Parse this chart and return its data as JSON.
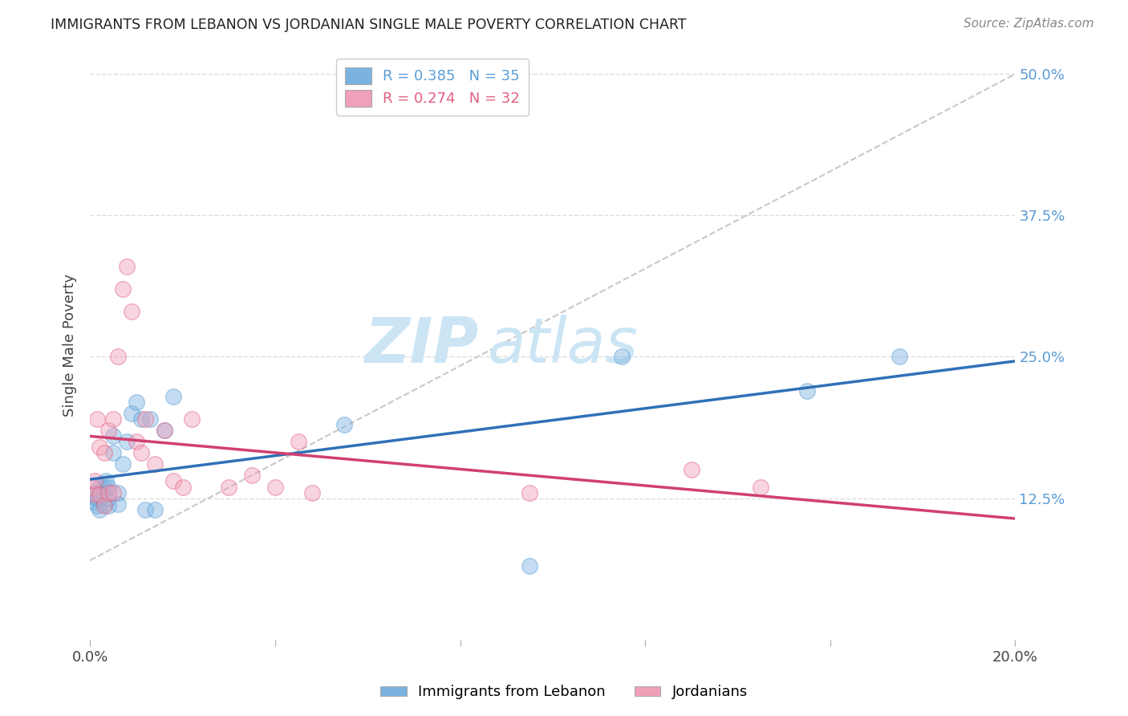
{
  "title": "IMMIGRANTS FROM LEBANON VS JORDANIAN SINGLE MALE POVERTY CORRELATION CHART",
  "source": "Source: ZipAtlas.com",
  "ylabel": "Single Male Poverty",
  "ytick_labels": [
    "12.5%",
    "25.0%",
    "37.5%",
    "50.0%"
  ],
  "ytick_values": [
    0.125,
    0.25,
    0.375,
    0.5
  ],
  "xlim": [
    0.0,
    0.2
  ],
  "ylim": [
    0.0,
    0.52
  ],
  "legend_entries": [
    {
      "label": "R = 0.385   N = 35",
      "color": "#5b9bd5"
    },
    {
      "label": "R = 0.274   N = 32",
      "color": "#e06080"
    }
  ],
  "series1_label": "Immigrants from Lebanon",
  "series1_color": "#7ab3e0",
  "series1_color_edge": "#5b9bd5",
  "series2_label": "Jordanians",
  "series2_color": "#f0a0b8",
  "series2_color_edge": "#e06080",
  "trendline1_color": "#3070b8",
  "trendline2_color": "#d04070",
  "diagonal_color": "#c8c8c8",
  "background_color": "#ffffff",
  "grid_color": "#dddddd",
  "watermark_zip": "ZIP",
  "watermark_atlas": "atlas",
  "watermark_color": "#cce5f5",
  "series1_x": [
    0.0005,
    0.001,
    0.001,
    0.0015,
    0.0015,
    0.002,
    0.002,
    0.002,
    0.0025,
    0.003,
    0.003,
    0.003,
    0.0035,
    0.004,
    0.004,
    0.004,
    0.005,
    0.005,
    0.006,
    0.006,
    0.007,
    0.008,
    0.009,
    0.01,
    0.011,
    0.012,
    0.013,
    0.014,
    0.016,
    0.018,
    0.055,
    0.095,
    0.115,
    0.155,
    0.175
  ],
  "series1_y": [
    0.128,
    0.122,
    0.13,
    0.118,
    0.125,
    0.115,
    0.13,
    0.135,
    0.128,
    0.12,
    0.128,
    0.135,
    0.14,
    0.118,
    0.125,
    0.135,
    0.165,
    0.18,
    0.12,
    0.13,
    0.155,
    0.175,
    0.2,
    0.21,
    0.195,
    0.115,
    0.195,
    0.115,
    0.185,
    0.215,
    0.19,
    0.065,
    0.25,
    0.22,
    0.25
  ],
  "series2_x": [
    0.0005,
    0.001,
    0.001,
    0.0015,
    0.002,
    0.002,
    0.003,
    0.003,
    0.004,
    0.004,
    0.005,
    0.005,
    0.006,
    0.007,
    0.008,
    0.009,
    0.01,
    0.011,
    0.012,
    0.014,
    0.016,
    0.018,
    0.02,
    0.022,
    0.03,
    0.035,
    0.04,
    0.045,
    0.048,
    0.095,
    0.13,
    0.145
  ],
  "series2_y": [
    0.135,
    0.128,
    0.14,
    0.195,
    0.128,
    0.17,
    0.118,
    0.165,
    0.185,
    0.13,
    0.13,
    0.195,
    0.25,
    0.31,
    0.33,
    0.29,
    0.175,
    0.165,
    0.195,
    0.155,
    0.185,
    0.14,
    0.135,
    0.195,
    0.135,
    0.145,
    0.135,
    0.175,
    0.13,
    0.13,
    0.15,
    0.135
  ]
}
